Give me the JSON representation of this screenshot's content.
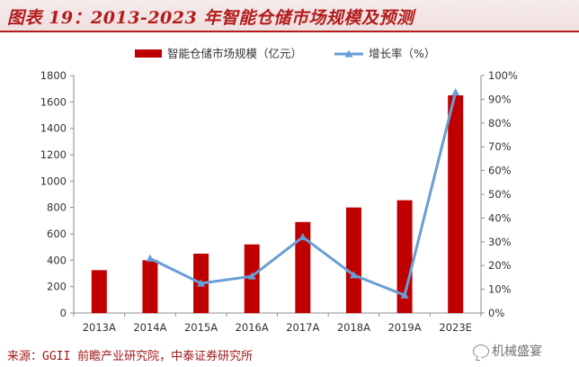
{
  "header": {
    "title": "图表 19：2013-2023 年智能仓储市场规模及预测"
  },
  "footer": {
    "source": "来源：GGII 前瞻产业研究院，中泰证券研究所",
    "watermark": "机械盛宴"
  },
  "colors": {
    "bar": "#c00000",
    "line": "#6a9ed6",
    "accent": "#b31b1b"
  },
  "icons": {
    "watermark": "wechat-icon"
  },
  "chart_data": {
    "type": "bar",
    "title": "",
    "categories": [
      "2013A",
      "2014A",
      "2015A",
      "2016A",
      "2017A",
      "2018A",
      "2019A",
      "2023E"
    ],
    "series": [
      {
        "name": "智能仓储市场规模（亿元）",
        "type": "bar",
        "axis": "left",
        "values": [
          325,
          400,
          450,
          520,
          690,
          800,
          855,
          1650
        ]
      },
      {
        "name": "增长率（%）",
        "type": "line",
        "axis": "right",
        "values": [
          null,
          23,
          12.5,
          15.5,
          32,
          16,
          7.5,
          93
        ]
      }
    ],
    "y_left": {
      "min": 0,
      "max": 1800,
      "ticks": [
        "0",
        "200",
        "400",
        "600",
        "800",
        "1000",
        "1200",
        "1400",
        "1600",
        "1800"
      ]
    },
    "y_right": {
      "min": 0,
      "max": 100,
      "ticks": [
        "0%",
        "10%",
        "20%",
        "30%",
        "40%",
        "50%",
        "60%",
        "70%",
        "80%",
        "90%",
        "100%"
      ]
    },
    "legend": "top-center",
    "grid": false
  }
}
